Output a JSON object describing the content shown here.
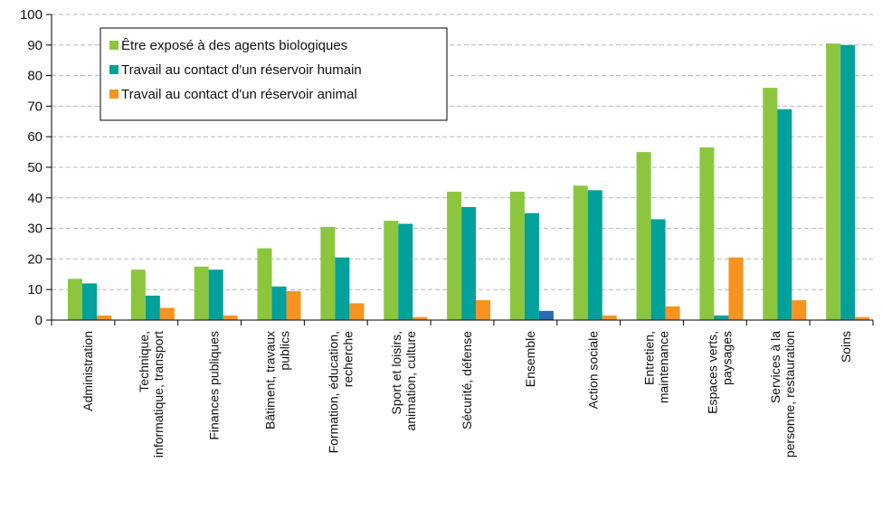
{
  "chart_data": {
    "type": "bar",
    "categories": [
      [
        "Administration"
      ],
      [
        "Technique,",
        "informatique, transport"
      ],
      [
        "Finances publiques"
      ],
      [
        "Bâtiment, travaux",
        "publics"
      ],
      [
        "Formation, éducation,",
        "recherche"
      ],
      [
        "Sport et loisirs,",
        "animation, culture"
      ],
      [
        "Sécurité, défense"
      ],
      [
        "Ensemble"
      ],
      [
        "Action sociale"
      ],
      [
        "Entretien,",
        "maintenance"
      ],
      [
        "Espaces verts,",
        "paysages"
      ],
      [
        "Services à la",
        "personne, restauration"
      ],
      [
        "Soins"
      ]
    ],
    "series": [
      {
        "name": "Être exposé à des agents biologiques",
        "values": [
          13.5,
          16.5,
          17.5,
          23.5,
          30.5,
          32.5,
          42,
          42,
          44,
          55,
          56.5,
          76,
          90.5
        ]
      },
      {
        "name": "Travail au contact d'un réservoir humain",
        "values": [
          12,
          8,
          16.5,
          11,
          20.5,
          31.5,
          37,
          35,
          42.5,
          33,
          1.5,
          69,
          90
        ]
      },
      {
        "name": "Travail au contact d'un réservoir animal",
        "values": [
          1.5,
          4,
          1.5,
          9.5,
          5.5,
          1,
          6.5,
          3,
          1.5,
          4.5,
          20.5,
          6.5,
          1
        ]
      }
    ],
    "ylim": [
      0,
      100
    ],
    "yticks": [
      0,
      10,
      20,
      30,
      40,
      50,
      60,
      70,
      80,
      90,
      100
    ],
    "grid": true,
    "legend_position": "top-left",
    "colors": {
      "series": [
        "#8cc63f",
        "#00a19a",
        "#f7931e"
      ],
      "highlight_bar": "#2a6ab2",
      "grid": "#b8b8b8",
      "axis": "#000000"
    },
    "highlight": {
      "category_index": 7,
      "series_index": 2
    }
  }
}
